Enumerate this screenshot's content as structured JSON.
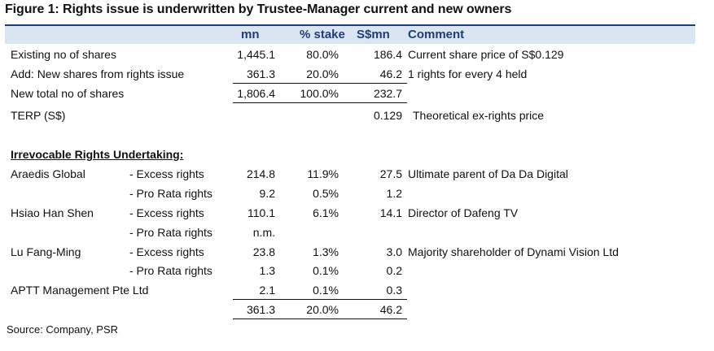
{
  "title": "Figure 1: Rights issue is underwritten by Trustee-Manager current and new owners",
  "header": {
    "mn": "mn",
    "stake": "% stake",
    "sgd": "S$mn",
    "comment": "Comment"
  },
  "top_rows": [
    {
      "label": "Existing no of shares",
      "mn": "1,445.1",
      "stake": "80.0%",
      "sgd": "186.4",
      "comment": "Current share price of S$0.129"
    },
    {
      "label": "Add: New shares from rights issue",
      "mn": "361.3",
      "stake": "20.0%",
      "sgd": "46.2",
      "comment": "1 rights for every 4 held"
    },
    {
      "label": "New total no of shares",
      "mn": "1,806.4",
      "stake": "100.0%",
      "sgd": "232.7",
      "comment": ""
    },
    {
      "label": "TERP (S$)",
      "mn": "",
      "stake": "",
      "sgd": "0.129",
      "comment": "Theoretical ex-rights price"
    }
  ],
  "section_title": "Irrevocable Rights Undertaking:",
  "undertakings": [
    {
      "name": "Araedis Global",
      "type": "- Excess rights",
      "mn": "214.8",
      "stake": "11.9%",
      "sgd": "27.5",
      "comment": "Ultimate parent of Da Da Digital"
    },
    {
      "name": "",
      "type": "- Pro Rata rights",
      "mn": "9.2",
      "stake": "0.5%",
      "sgd": "1.2",
      "comment": ""
    },
    {
      "name": "Hsiao Han Shen",
      "type": "- Excess rights",
      "mn": "110.1",
      "stake": "6.1%",
      "sgd": "14.1",
      "comment": "Director of Dafeng TV"
    },
    {
      "name": "",
      "type": "- Pro Rata rights",
      "mn": "n.m.",
      "stake": "",
      "sgd": "",
      "comment": ""
    },
    {
      "name": "Lu Fang-Ming",
      "type": "- Excess rights",
      "mn": "23.8",
      "stake": "1.3%",
      "sgd": "3.0",
      "comment": "Majority shareholder of Dynami Vision Ltd"
    },
    {
      "name": "",
      "type": "- Pro Rata rights",
      "mn": "1.3",
      "stake": "0.1%",
      "sgd": "0.2",
      "comment": ""
    },
    {
      "name": "APTT Management Pte Ltd",
      "type": "",
      "mn": "2.1",
      "stake": "0.1%",
      "sgd": "0.3",
      "comment": ""
    }
  ],
  "total": {
    "mn": "361.3",
    "stake": "20.0%",
    "sgd": "46.2"
  },
  "source": "Source: Company, PSR"
}
